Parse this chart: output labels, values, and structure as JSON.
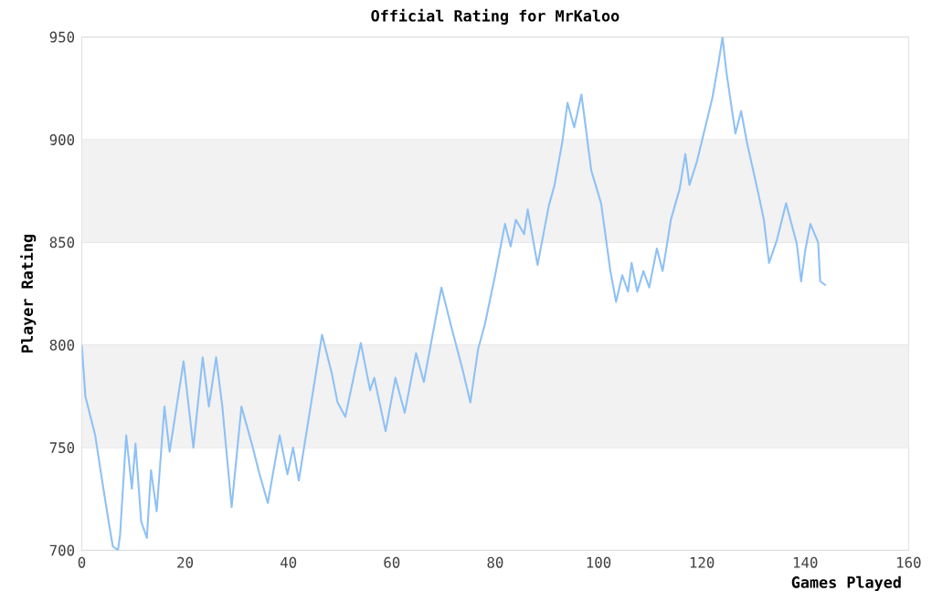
{
  "chart_data": {
    "type": "line",
    "title": "Official Rating for MrKaloo",
    "xlabel": "Games Played",
    "ylabel": "Player Rating",
    "xlim": [
      0,
      160
    ],
    "xticks": [
      0,
      20,
      40,
      60,
      80,
      100,
      120,
      140,
      160
    ],
    "ylim": [
      700,
      950
    ],
    "yticks": [
      700,
      750,
      800,
      850,
      900,
      950
    ],
    "grid": "y",
    "bands": [
      {
        "axis": "y",
        "from": 750,
        "to": 800,
        "color": "#f2f2f2"
      },
      {
        "axis": "y",
        "from": 850,
        "to": 900,
        "color": "#f2f2f2"
      }
    ],
    "series": [
      {
        "color": "#8fc1f5",
        "x": [
          0,
          0.7,
          2.6,
          4,
          5.2,
          6,
          7,
          7.4,
          8.6,
          9.7,
          10.4,
          11.5,
          12.6,
          13.4,
          14.5,
          16,
          17,
          19.7,
          21.6,
          23.4,
          24.6,
          26,
          27.2,
          29,
          30.9,
          33,
          34.2,
          36,
          38.3,
          39.8,
          40.9,
          42,
          43.9,
          46.5,
          48.4,
          49.5,
          51,
          54,
          55.8,
          56.6,
          58.8,
          60.7,
          62.5,
          64.7,
          66.2,
          69.6,
          71.4,
          73.7,
          75.2,
          76.7,
          78,
          80,
          81.9,
          83,
          84,
          85.6,
          86.3,
          88.2,
          90.4,
          91.5,
          93,
          94,
          95.3,
          96.7,
          98.6,
          100.5,
          102.3,
          103.4,
          104.6,
          105.7,
          106.4,
          107.5,
          108.7,
          109.8,
          111.3,
          112.4,
          113,
          114,
          115.7,
          116.8,
          117.6,
          119,
          122,
          123.2,
          124,
          124.7,
          125.5,
          126.5,
          127.6,
          128.7,
          131,
          132,
          133,
          134.5,
          136.3,
          138.4,
          139.2,
          140,
          141,
          142.5,
          142.9,
          144
        ],
        "values": [
          800,
          775,
          756,
          733,
          714,
          702,
          700,
          707,
          756,
          730,
          752,
          714,
          706,
          739,
          719,
          770,
          748,
          792,
          750,
          794,
          770,
          794,
          770,
          721,
          770,
          751,
          739,
          723,
          756,
          737,
          750,
          734,
          764,
          805,
          786,
          772,
          765,
          801,
          778,
          784,
          758,
          784,
          767,
          796,
          782,
          828,
          810,
          788,
          772,
          798,
          810,
          834,
          859,
          848,
          861,
          854,
          866,
          839,
          868,
          878,
          899,
          918,
          906,
          922,
          885,
          869,
          836,
          821,
          834,
          826,
          840,
          826,
          836,
          828,
          847,
          836,
          845,
          861,
          876,
          893,
          878,
          889,
          920,
          937,
          950,
          934,
          920,
          903,
          914,
          899,
          873,
          861,
          840,
          851,
          869,
          849,
          831,
          846,
          859,
          850,
          831,
          829
        ]
      }
    ]
  }
}
